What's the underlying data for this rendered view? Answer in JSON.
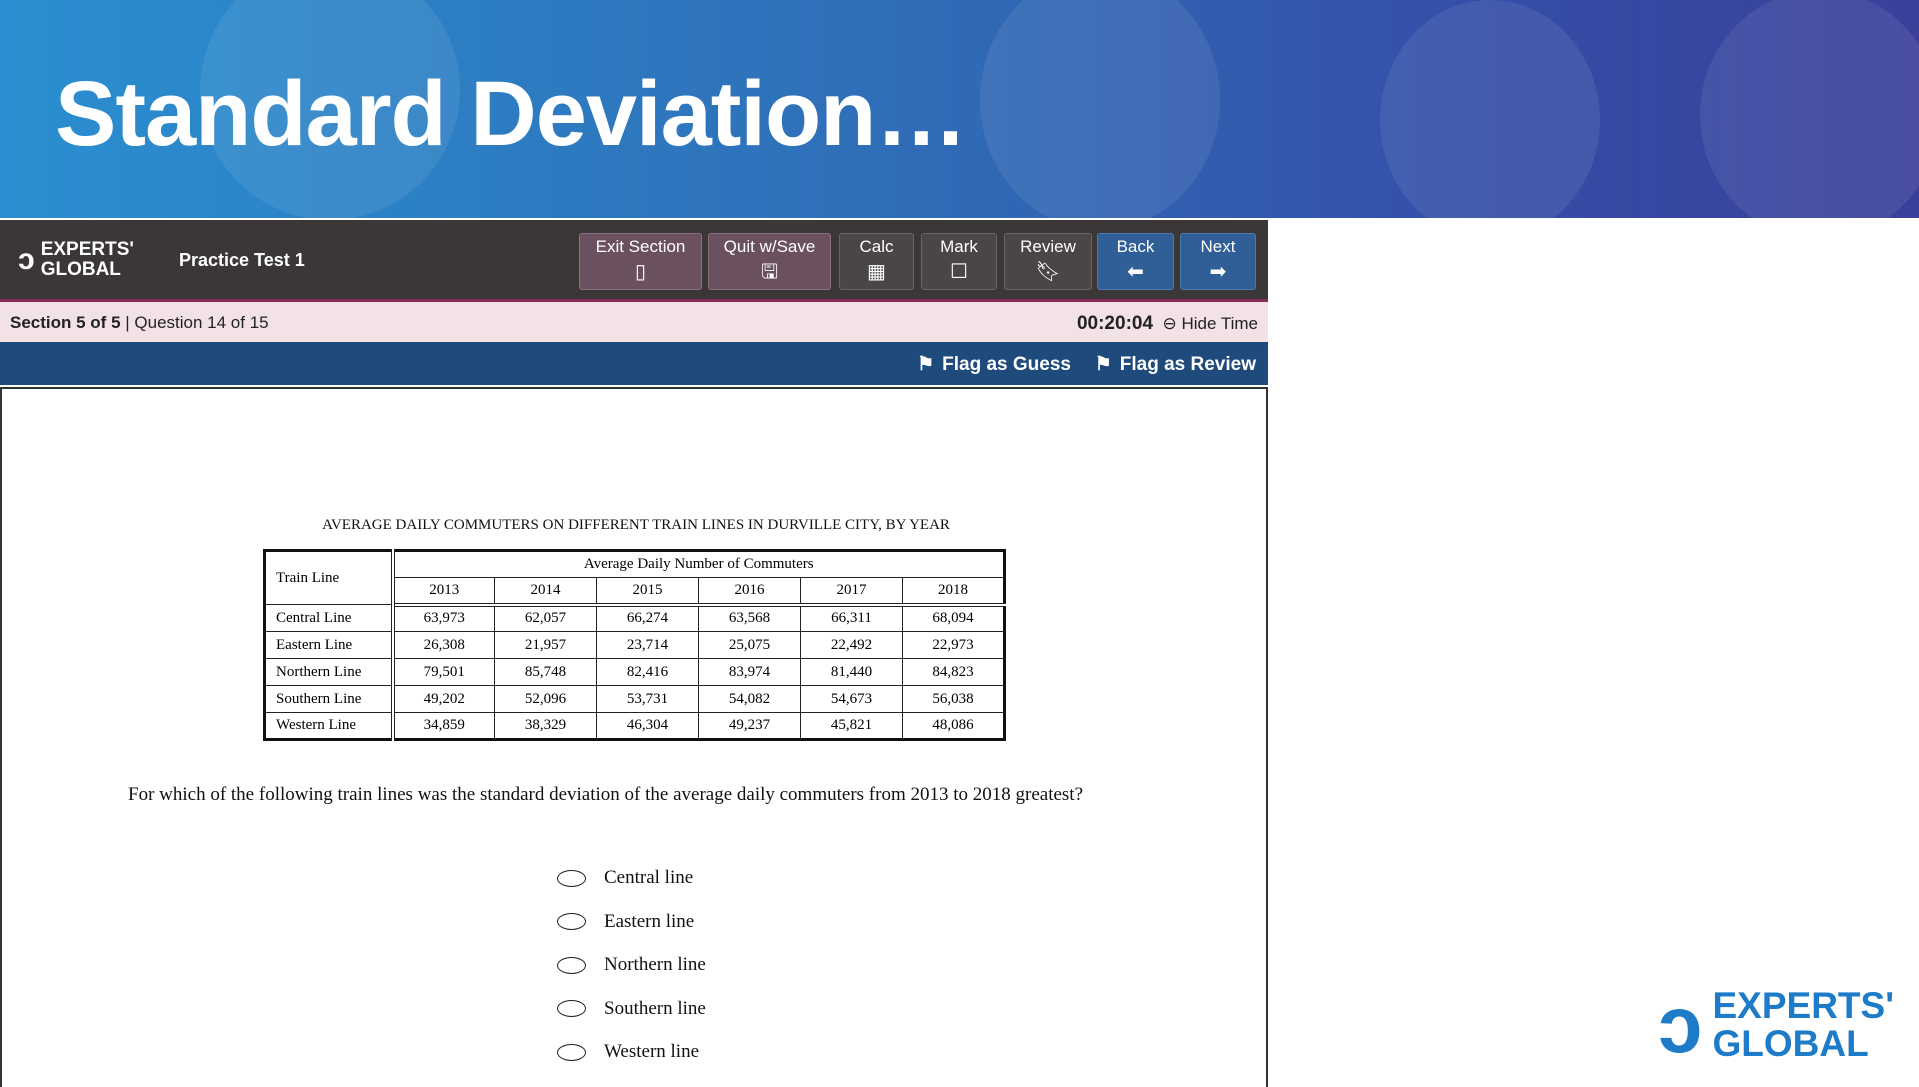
{
  "banner": {
    "title": "Standard Deviation…"
  },
  "toolbar": {
    "logo": "EXPERTS' GLOBAL",
    "test_name": "Practice Test 1",
    "buttons": [
      {
        "label": "Exit Section",
        "icon": "door-icon"
      },
      {
        "label": "Quit w/Save",
        "icon": "save-icon"
      },
      {
        "label": "Calc",
        "icon": "calculator-icon"
      },
      {
        "label": "Mark",
        "icon": "checkbox-icon"
      },
      {
        "label": "Review",
        "icon": "bookmark-icon"
      },
      {
        "label": "Back",
        "icon": "arrow-left-icon"
      },
      {
        "label": "Next",
        "icon": "arrow-right-icon"
      }
    ]
  },
  "status": {
    "section": "Section 5 of 5",
    "question": "Question 14 of 15",
    "timer": "00:20:04",
    "hide_time": "Hide Time"
  },
  "flags": {
    "guess": "Flag as Guess",
    "review": "Flag as Review"
  },
  "table": {
    "title": "AVERAGE DAILY COMMUTERS ON DIFFERENT TRAIN LINES IN DURVILLE CITY, BY YEAR",
    "row_header": "Train Line",
    "group_header": "Average Daily Number of Commuters",
    "years": [
      "2013",
      "2014",
      "2015",
      "2016",
      "2017",
      "2018"
    ],
    "rows": [
      {
        "line": "Central Line",
        "values": [
          "63,973",
          "62,057",
          "66,274",
          "63,568",
          "66,311",
          "68,094"
        ]
      },
      {
        "line": "Eastern Line",
        "values": [
          "26,308",
          "21,957",
          "23,714",
          "25,075",
          "22,492",
          "22,973"
        ]
      },
      {
        "line": "Northern Line",
        "values": [
          "79,501",
          "85,748",
          "82,416",
          "83,974",
          "81,440",
          "84,823"
        ]
      },
      {
        "line": "Southern Line",
        "values": [
          "49,202",
          "52,096",
          "53,731",
          "54,082",
          "54,673",
          "56,038"
        ]
      },
      {
        "line": "Western Line",
        "values": [
          "34,859",
          "38,329",
          "46,304",
          "49,237",
          "45,821",
          "48,086"
        ]
      }
    ]
  },
  "question": "For which of the following train lines was the standard deviation of the average daily commuters from 2013 to 2018 greatest?",
  "options": [
    "Central line",
    "Eastern line",
    "Northern line",
    "Southern line",
    "Western line"
  ],
  "footer_logo": {
    "line1": "EXPERTS'",
    "line2": "GLOBAL"
  },
  "colors": {
    "toolbar": "#3b3736",
    "status_bar": "#f3e2e5",
    "flag_bar": "#1f4a7c",
    "nav_button": "#2f5f96",
    "brand": "#1e7bc8"
  }
}
